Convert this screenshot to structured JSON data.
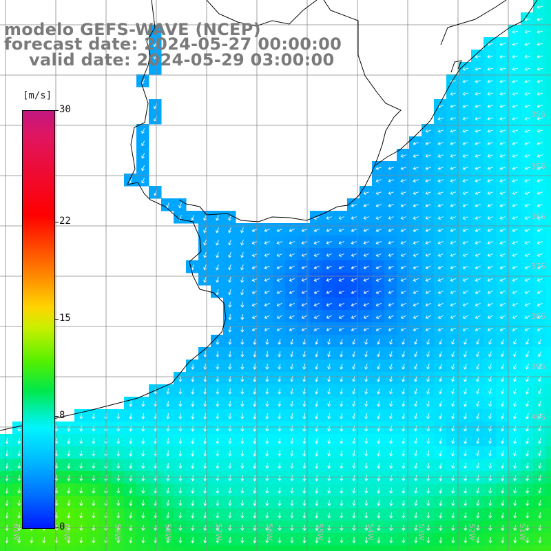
{
  "title": {
    "line1": "modelo GEFS-WAVE (NCEP)",
    "line2": "forecast date: 2024-05-27 00:00:00",
    "line3": "valid date: 2024-05-29 03:00:00"
  },
  "colorbar": {
    "unit_label": "[m/s]",
    "ticks": [
      {
        "label": "30",
        "value": 30
      },
      {
        "label": "22",
        "value": 22
      },
      {
        "label": "15",
        "value": 15
      },
      {
        "label": "8",
        "value": 8
      },
      {
        "label": "0",
        "value": 0
      }
    ],
    "colors": [
      "#c2177f",
      "#ff0000",
      "#ff7a00",
      "#ffd400",
      "#55f000",
      "#00e84a",
      "#00f4ff",
      "#00b8ff",
      "#0070ff",
      "#0018ff"
    ]
  },
  "map": {
    "lat_labels": [
      "35S",
      "35S",
      "36S",
      "37S",
      "38S",
      "39S",
      "40S"
    ],
    "lon_labels": [
      "61W",
      "60W",
      "59W",
      "58W",
      "57W",
      "56W",
      "55W",
      "54W",
      "53W",
      "52W",
      "51W"
    ],
    "variable": "wind speed and direction",
    "colors": {
      "land": "#ffffff",
      "coast": "#000000",
      "grid": "#888888",
      "arrow": "#ffffff"
    }
  }
}
